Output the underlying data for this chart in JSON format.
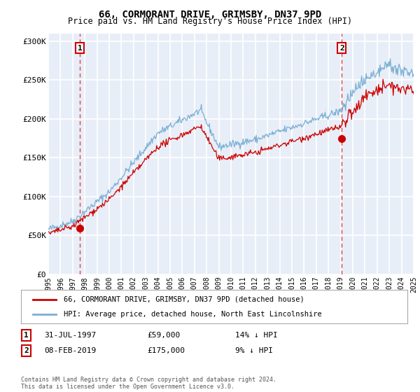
{
  "title": "66, CORMORANT DRIVE, GRIMSBY, DN37 9PD",
  "subtitle": "Price paid vs. HM Land Registry's House Price Index (HPI)",
  "ylim": [
    0,
    310000
  ],
  "yticks": [
    0,
    50000,
    100000,
    150000,
    200000,
    250000,
    300000
  ],
  "ytick_labels": [
    "£0",
    "£50K",
    "£100K",
    "£150K",
    "£200K",
    "£250K",
    "£300K"
  ],
  "sale1_date": 1997.58,
  "sale1_price": 59000,
  "sale1_label": "1",
  "sale2_date": 2019.1,
  "sale2_price": 175000,
  "sale2_label": "2",
  "background_color": "#E8EEF8",
  "grid_color": "#FFFFFF",
  "red_line_color": "#CC0000",
  "blue_line_color": "#7BAFD4",
  "dashed_line_color": "#DD4444",
  "legend_label1": "66, CORMORANT DRIVE, GRIMSBY, DN37 9PD (detached house)",
  "legend_label2": "HPI: Average price, detached house, North East Lincolnshire",
  "footnote": "Contains HM Land Registry data © Crown copyright and database right 2024.\nThis data is licensed under the Open Government Licence v3.0.",
  "xmin": 1995,
  "xmax": 2025
}
